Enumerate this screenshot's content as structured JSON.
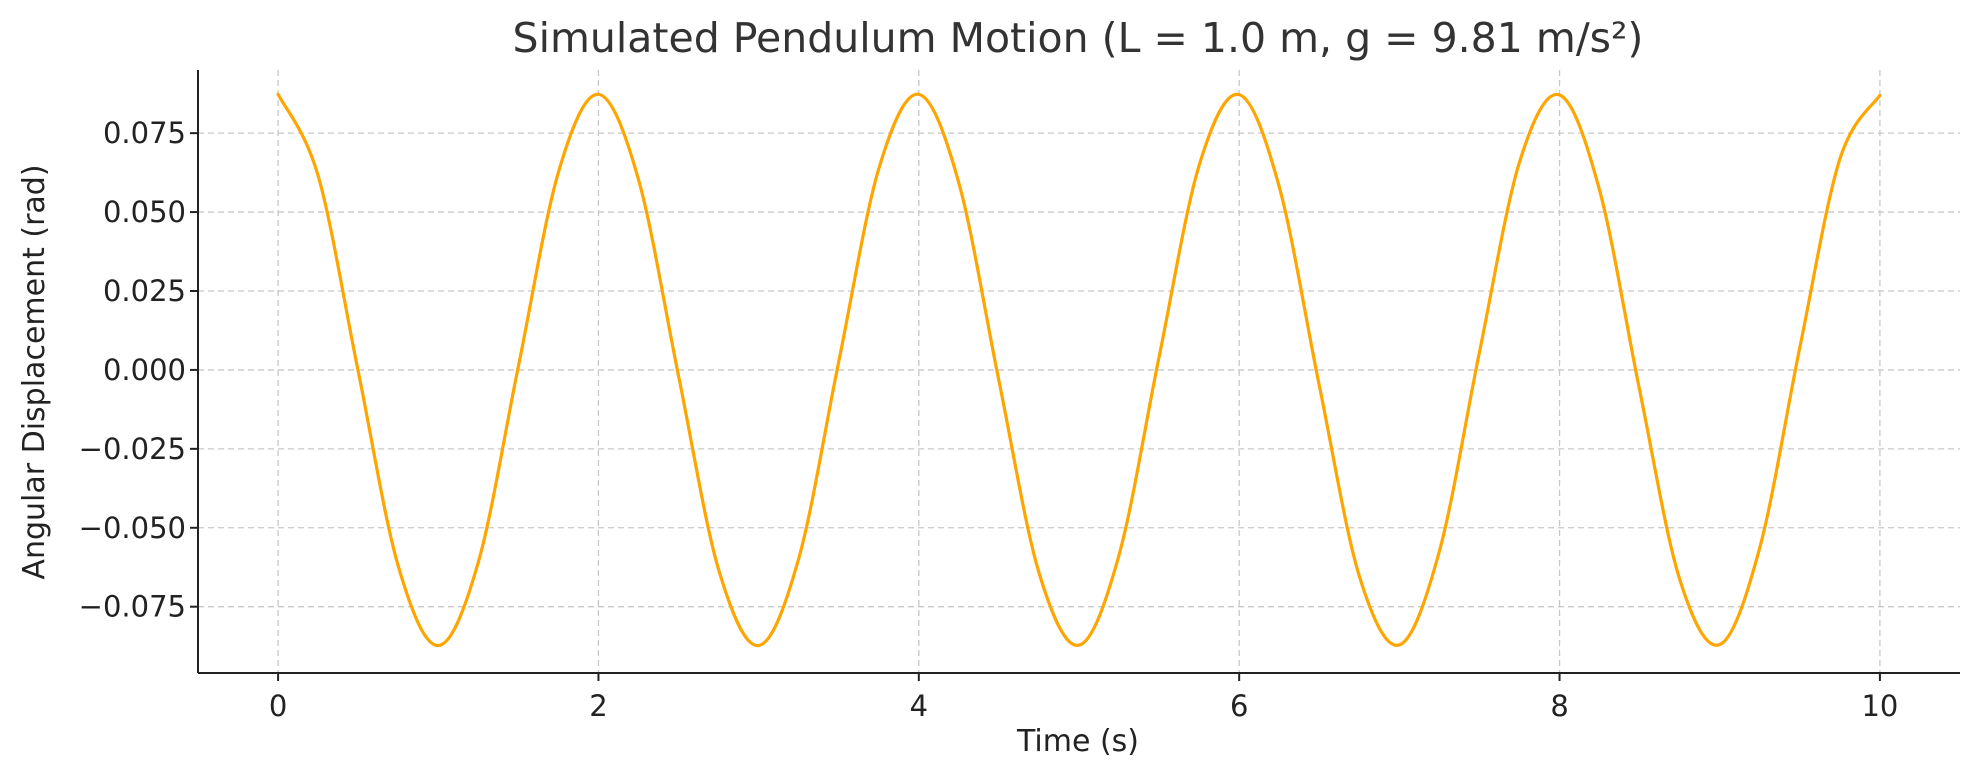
{
  "chart_data": {
    "type": "line",
    "title": "Simulated Pendulum Motion (L = 1.0 m, g = 9.81 m/s²)",
    "xlabel": "Time (s)",
    "ylabel": "Angular Displacement (rad)",
    "xlim": [
      -0.5,
      10.5
    ],
    "ylim": [
      -0.096,
      0.095
    ],
    "x_ticks": [
      0,
      2,
      4,
      6,
      8,
      10
    ],
    "x_tick_labels": [
      "0",
      "2",
      "4",
      "6",
      "8",
      "10"
    ],
    "y_ticks": [
      0.075,
      0.05,
      0.025,
      0.0,
      -0.025,
      -0.05,
      -0.075
    ],
    "y_tick_labels": [
      "0.075",
      "0.050",
      "0.025",
      "0.000",
      "−0.025",
      "−0.050",
      "−0.075"
    ],
    "grid": true,
    "legend": "none",
    "series": [
      {
        "color": "#FFA500",
        "x": [
          0,
          0.25,
          0.5,
          0.75,
          1.0,
          1.25,
          1.5,
          1.75,
          2.0,
          2.25,
          2.5,
          2.75,
          3.0,
          3.25,
          3.5,
          3.75,
          4.0,
          4.25,
          4.5,
          4.75,
          5.0,
          5.25,
          5.5,
          5.75,
          6.0,
          6.25,
          6.5,
          6.75,
          7.0,
          7.25,
          7.5,
          7.75,
          8.0,
          8.25,
          8.5,
          8.75,
          9.0,
          9.25,
          9.5,
          9.75,
          10.0
        ],
        "y": [
          0.0873,
          0.0615,
          -0.0004,
          -0.0621,
          -0.0873,
          -0.0609,
          0.0011,
          0.0626,
          0.0873,
          0.0603,
          -0.0019,
          -0.0632,
          -0.0873,
          -0.0598,
          0.0026,
          0.0637,
          0.0873,
          0.0592,
          -0.0034,
          -0.0642,
          -0.0872,
          -0.0586,
          0.0041,
          0.0648,
          0.0872,
          0.058,
          -0.0049,
          -0.0653,
          -0.0871,
          -0.0574,
          0.0056,
          0.0658,
          0.0871,
          0.0569,
          -0.0064,
          -0.0663,
          -0.087,
          -0.0563,
          0.0071,
          0.0668,
          0.087
        ]
      }
    ]
  }
}
